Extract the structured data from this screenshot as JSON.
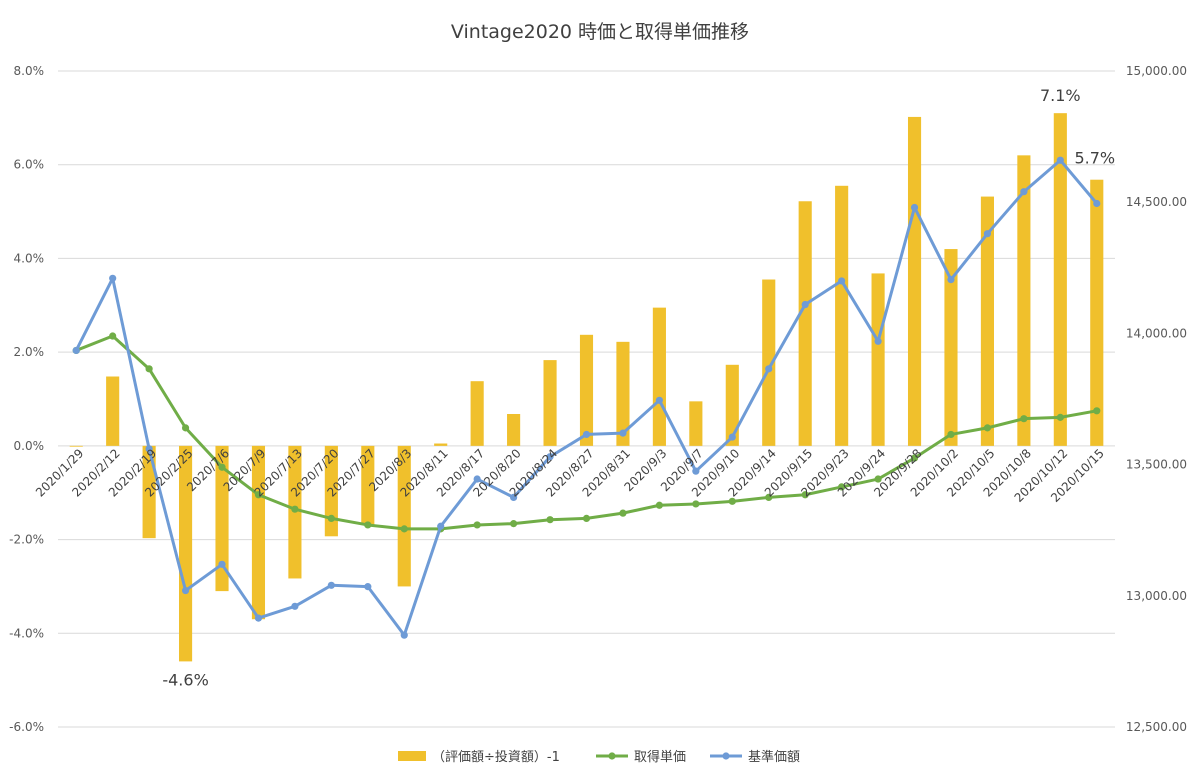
{
  "chart_data": {
    "type": "bar+line",
    "title": "Vintage2020 時価と取得単価推移",
    "categories": [
      "2020/1/29",
      "2020/2/12",
      "2020/2/19",
      "2020/2/25",
      "2020/7/6",
      "2020/7/9",
      "2020/7/13",
      "2020/7/20",
      "2020/7/27",
      "2020/8/3",
      "2020/8/11",
      "2020/8/17",
      "2020/8/20",
      "2020/8/24",
      "2020/8/27",
      "2020/8/31",
      "2020/9/3",
      "2020/9/7",
      "2020/9/10",
      "2020/9/14",
      "2020/9/15",
      "2020/9/23",
      "2020/9/24",
      "2020/9/28",
      "2020/10/2",
      "2020/10/5",
      "2020/10/8",
      "2020/10/12",
      "2020/10/15"
    ],
    "y_left": {
      "min": -6,
      "max": 8,
      "step": 2,
      "tick_labels": [
        "-6.0%",
        "-4.0%",
        "-2.0%",
        "0.0%",
        "2.0%",
        "4.0%",
        "6.0%",
        "8.0%"
      ]
    },
    "y_right": {
      "min": 12500,
      "max": 15000,
      "step": 500,
      "tick_labels": [
        "12,500.00",
        "13,000.00",
        "13,500.00",
        "14,000.00",
        "14,500.00",
        "15,000.00"
      ]
    },
    "series": [
      {
        "name": "（評価額÷投資額）-1",
        "type": "bar",
        "axis": "left",
        "color": "#f0c02c",
        "values": [
          0.0,
          1.48,
          -1.97,
          -4.6,
          -3.1,
          -3.7,
          -2.83,
          -1.93,
          -1.68,
          -3.0,
          0.05,
          1.38,
          0.68,
          1.83,
          2.37,
          2.22,
          2.95,
          0.95,
          1.73,
          3.55,
          5.22,
          5.55,
          3.68,
          7.02,
          4.2,
          5.32,
          6.2,
          7.1,
          5.68
        ]
      },
      {
        "name": "取得単価",
        "type": "line",
        "axis": "right",
        "color": "#70ad47",
        "values": [
          13935,
          13990,
          13865,
          13640,
          13490,
          13385,
          13330,
          13295,
          13270,
          13255,
          13255,
          13270,
          13275,
          13290,
          13295,
          13315,
          13345,
          13350,
          13360,
          13375,
          13385,
          13415,
          13445,
          13525,
          13615,
          13640,
          13675,
          13680,
          13705
        ]
      },
      {
        "name": "基準価額",
        "type": "line",
        "axis": "right",
        "color": "#6e9bd6",
        "values": [
          13935,
          14210,
          13560,
          13020,
          13120,
          12915,
          12960,
          13040,
          13035,
          12850,
          13265,
          13445,
          13375,
          13530,
          13615,
          13620,
          13745,
          13475,
          13605,
          13865,
          14110,
          14200,
          13970,
          14480,
          14205,
          14380,
          14540,
          14660,
          14495
        ]
      }
    ],
    "data_labels": [
      {
        "series": 0,
        "index": 3,
        "text": "-4.6%"
      },
      {
        "series": 0,
        "index": 27,
        "text": "7.1%"
      },
      {
        "series": 0,
        "index": 28,
        "text": "5.7%"
      }
    ],
    "grid": "horizontal",
    "legend": "bottom"
  }
}
